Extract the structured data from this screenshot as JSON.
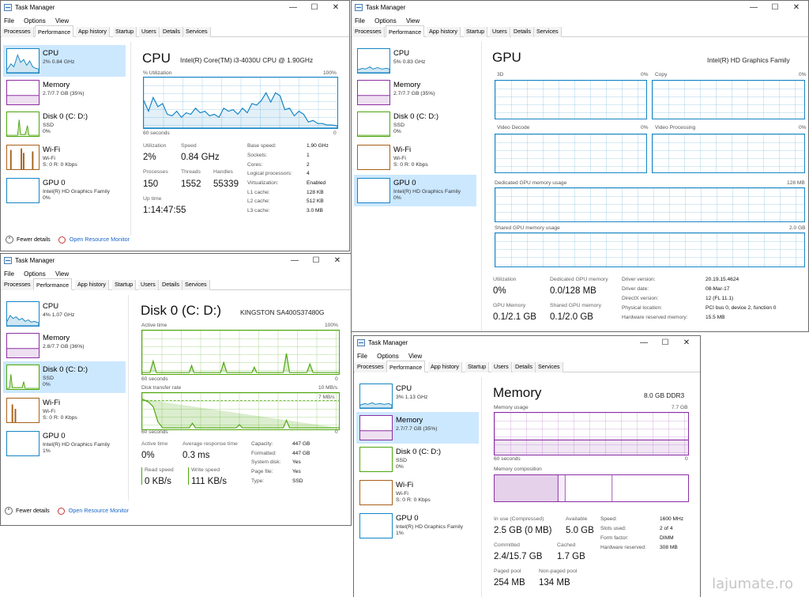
{
  "app_title": "Task Manager",
  "menu": [
    "File",
    "Options",
    "View"
  ],
  "tabs": [
    "Processes",
    "Performance",
    "App history",
    "Startup",
    "Users",
    "Details",
    "Services"
  ],
  "window_controls": {
    "minimize": "—",
    "maximize": "☐",
    "close": "✕"
  },
  "footer": {
    "fewer_details": "Fewer details",
    "open_resource_monitor": "Open Resource Monitor"
  },
  "watermark": "lajumate.ro",
  "colors": {
    "cpu": "#1585c5",
    "memory": "#8b2fa3",
    "disk": "#4da60c",
    "wifi": "#a7601a",
    "selected": "#cce8ff"
  },
  "win_cpu": {
    "sidebar": [
      {
        "name": "CPU",
        "l1": "2% 0.84 GHz"
      },
      {
        "name": "Memory",
        "l1": "2.7/7.7 GB (35%)"
      },
      {
        "name": "Disk 0 (C: D:)",
        "l1": "SSD",
        "l2": "0%"
      },
      {
        "name": "Wi-Fi",
        "l1": "Wi-Fi",
        "l2": "S: 0 R: 0 Kbps"
      },
      {
        "name": "GPU 0",
        "l1": "Intel(R) HD Graphics Family",
        "l2": "0%"
      }
    ],
    "title": "CPU",
    "model": "Intel(R) Core(TM) i3-4030U CPU @ 1.90GHz",
    "graph_label": "% Utilization",
    "graph_max": "100%",
    "graph_left": "60 seconds",
    "graph_right": "0",
    "stats": {
      "utilization_label": "Utilization",
      "utilization": "2%",
      "speed_label": "Speed",
      "speed": "0.84 GHz",
      "processes_label": "Processes",
      "processes": "150",
      "threads_label": "Threads",
      "threads": "1552",
      "handles_label": "Handles",
      "handles": "55339",
      "uptime_label": "Up time",
      "uptime": "1:14:47:55"
    },
    "details": [
      {
        "k": "Base speed:",
        "v": "1.90 GHz"
      },
      {
        "k": "Sockets:",
        "v": "1"
      },
      {
        "k": "Cores:",
        "v": "2"
      },
      {
        "k": "Logical processors:",
        "v": "4"
      },
      {
        "k": "Virtualization:",
        "v": "Enabled"
      },
      {
        "k": "L1 cache:",
        "v": "128 KB"
      },
      {
        "k": "L2 cache:",
        "v": "512 KB"
      },
      {
        "k": "L3 cache:",
        "v": "3.0 MB"
      }
    ]
  },
  "win_gpu": {
    "sidebar": [
      {
        "name": "CPU",
        "l1": "5% 0.83 GHz"
      },
      {
        "name": "Memory",
        "l1": "2.7/7.7 GB (35%)"
      },
      {
        "name": "Disk 0 (C: D:)",
        "l1": "SSD",
        "l2": "0%"
      },
      {
        "name": "Wi-Fi",
        "l1": "Wi-Fi",
        "l2": "S: 0 R: 0 Kbps"
      },
      {
        "name": "GPU 0",
        "l1": "Intel(R) HD Graphics Family",
        "l2": "0%"
      }
    ],
    "title": "GPU",
    "model": "Intel(R) HD Graphics Family",
    "engines": [
      {
        "name": "3D",
        "pct": "0%"
      },
      {
        "name": "Copy",
        "pct": "0%"
      },
      {
        "name": "Video Decode",
        "pct": "0%"
      },
      {
        "name": "Video Processing",
        "pct": "0%"
      }
    ],
    "dedicated_label": "Dedicated GPU memory usage",
    "dedicated_max": "128 MB",
    "shared_label": "Shared GPU memory usage",
    "shared_max": "2.0 GB",
    "stats": {
      "utilization_label": "Utilization",
      "utilization": "0%",
      "dedicated_mem_label": "Dedicated GPU memory",
      "dedicated_mem": "0.0/128 MB",
      "gpu_memory_label": "GPU Memory",
      "gpu_memory": "0.1/2.1 GB",
      "shared_mem_label": "Shared GPU memory",
      "shared_mem": "0.1/2.0 GB"
    },
    "details": [
      {
        "k": "Driver version:",
        "v": "20.19.15.4624"
      },
      {
        "k": "Driver date:",
        "v": "08-Mar-17"
      },
      {
        "k": "DirectX version:",
        "v": "12 (FL 11.1)"
      },
      {
        "k": "Physical location:",
        "v": "PCI bus 0, device 2, function 0"
      },
      {
        "k": "Hardware reserved memory:",
        "v": "15.5 MB"
      }
    ]
  },
  "win_disk": {
    "sidebar": [
      {
        "name": "CPU",
        "l1": "4% 1.07 GHz"
      },
      {
        "name": "Memory",
        "l1": "2.8/7.7 GB (36%)"
      },
      {
        "name": "Disk 0 (C: D:)",
        "l1": "SSD",
        "l2": "0%"
      },
      {
        "name": "Wi-Fi",
        "l1": "Wi-Fi",
        "l2": "S: 0 R: 0 Kbps"
      },
      {
        "name": "GPU 0",
        "l1": "Intel(R) HD Graphics Family",
        "l2": "1%"
      }
    ],
    "title": "Disk 0 (C: D:)",
    "model": "KINGSTON SA400S37480G",
    "active_label": "Active time",
    "active_max": "100%",
    "g1_left": "60 seconds",
    "g1_right": "0",
    "transfer_label": "Disk transfer rate",
    "transfer_max": "10 MB/s",
    "transfer_marker": "7 MB/s",
    "g2_left": "60 seconds",
    "g2_right": "0",
    "stats": {
      "active_time_label": "Active time",
      "active_time": "0%",
      "resp_label": "Average response time",
      "resp": "0.3 ms",
      "read_label": "Read speed",
      "read": "0 KB/s",
      "write_label": "Write speed",
      "write": "111 KB/s"
    },
    "details": [
      {
        "k": "Capacity:",
        "v": "447 GB"
      },
      {
        "k": "Formatted:",
        "v": "447 GB"
      },
      {
        "k": "System disk:",
        "v": "Yes"
      },
      {
        "k": "Page file:",
        "v": "Yes"
      },
      {
        "k": "Type:",
        "v": "SSD"
      }
    ]
  },
  "win_mem": {
    "sidebar": [
      {
        "name": "CPU",
        "l1": "3% 1.13 GHz"
      },
      {
        "name": "Memory",
        "l1": "2.7/7.7 GB (35%)"
      },
      {
        "name": "Disk 0 (C: D:)",
        "l1": "SSD",
        "l2": "0%"
      },
      {
        "name": "Wi-Fi",
        "l1": "Wi-Fi",
        "l2": "S: 0 R: 0 Kbps"
      },
      {
        "name": "GPU 0",
        "l1": "Intel(R) HD Graphics Family",
        "l2": "1%"
      }
    ],
    "title": "Memory",
    "model": "8.0 GB DDR3",
    "usage_label": "Memory usage",
    "usage_max": "7.7 GB",
    "g_left": "60 seconds",
    "g_right": "0",
    "composition_label": "Memory composition",
    "usage_fraction": 0.35,
    "stats": {
      "inuse_label": "In use (Compressed)",
      "inuse": "2.5 GB (0 MB)",
      "avail_label": "Available",
      "avail": "5.0 GB",
      "committed_label": "Committed",
      "committed": "2.4/15.7 GB",
      "cached_label": "Cached",
      "cached": "1.7 GB",
      "paged_label": "Paged pool",
      "paged": "254 MB",
      "nonpaged_label": "Non-paged pool",
      "nonpaged": "134 MB"
    },
    "details": [
      {
        "k": "Speed:",
        "v": "1600 MHz"
      },
      {
        "k": "Slots used:",
        "v": "2 of 4"
      },
      {
        "k": "Form factor:",
        "v": "DIMM"
      },
      {
        "k": "Hardware reserved:",
        "v": "308 MB"
      }
    ]
  }
}
